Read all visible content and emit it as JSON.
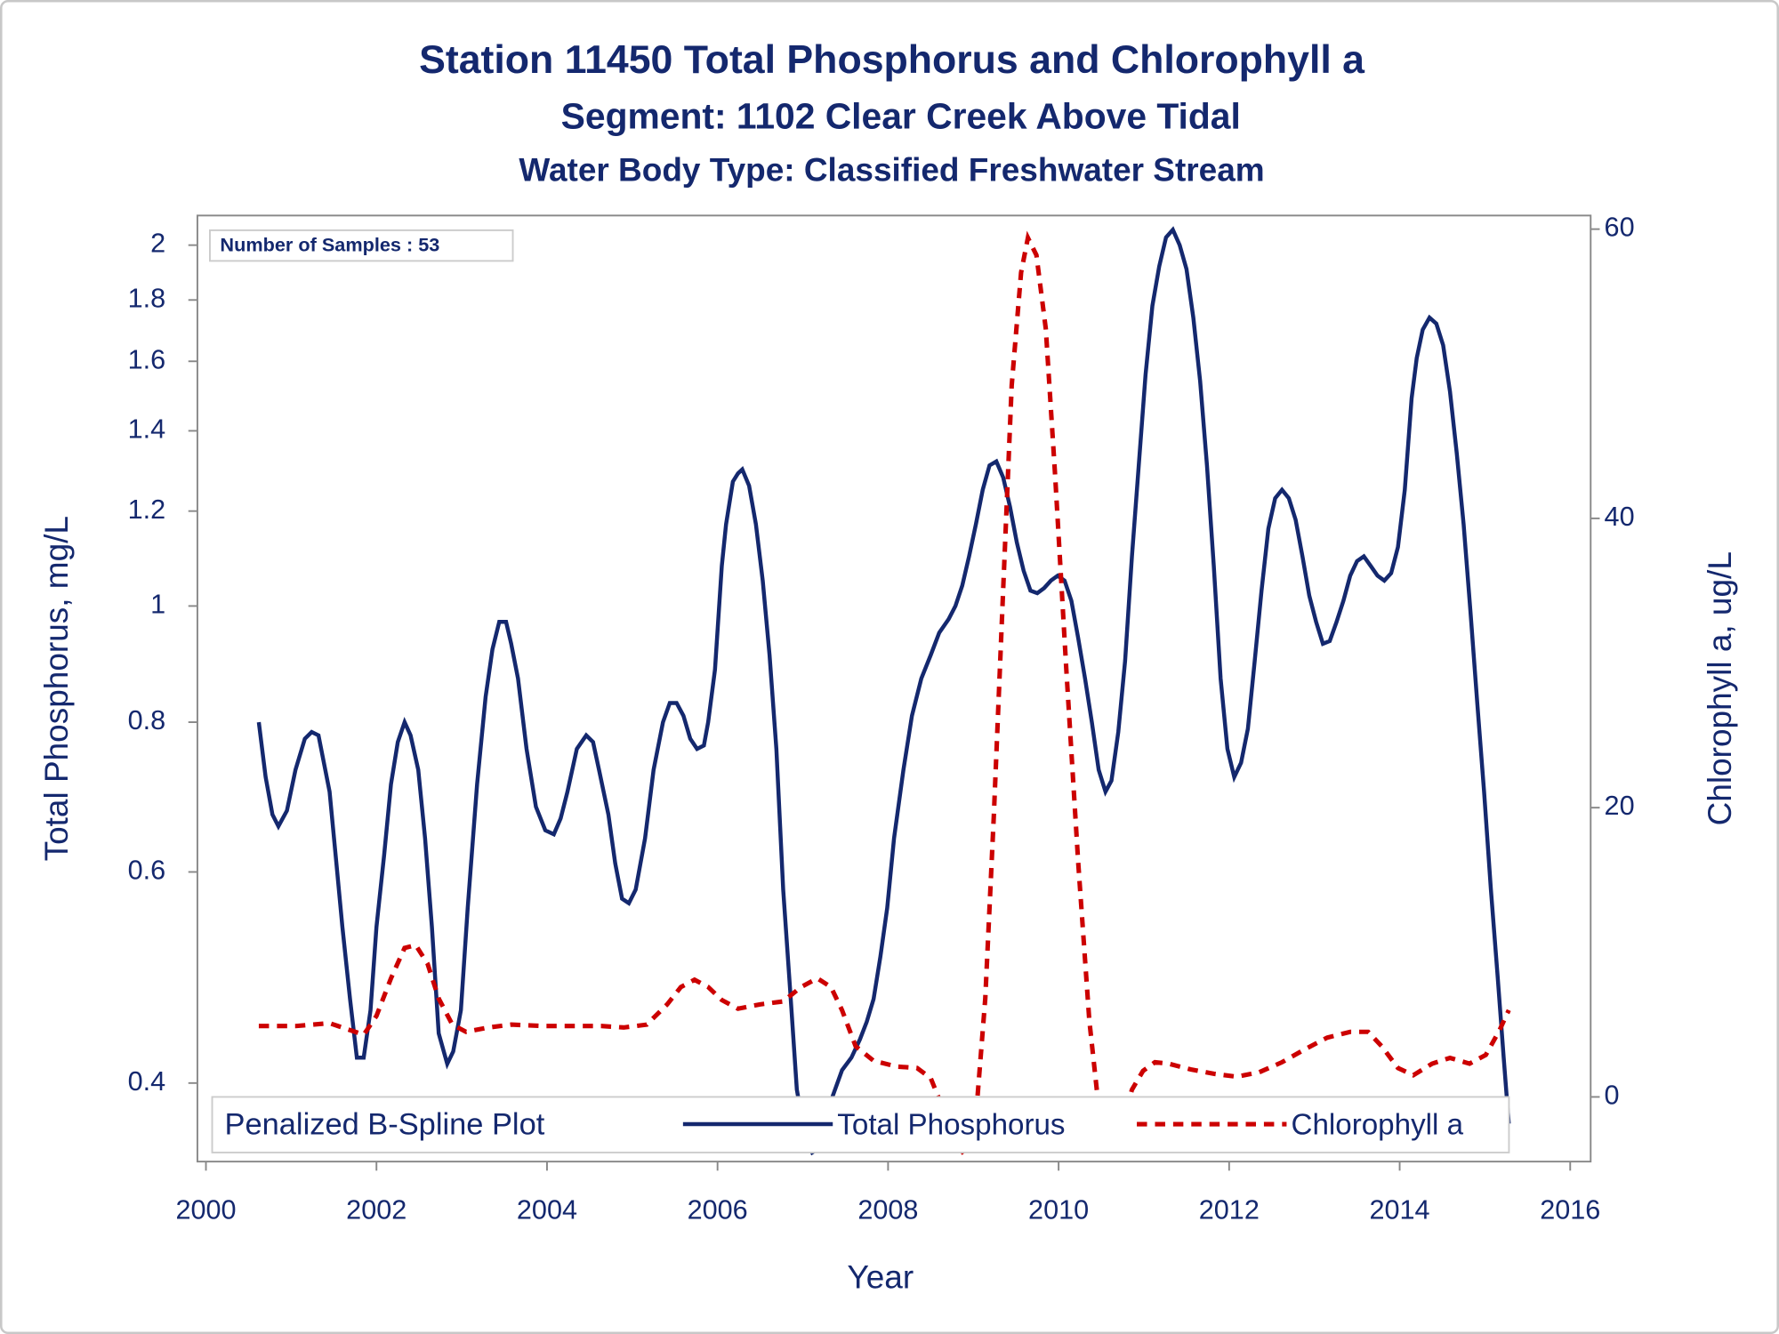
{
  "chart_data": {
    "type": "line",
    "title": "Station 11450  Total Phosphorus and Chlorophyll a",
    "subtitle": "Segment: 1102  Clear Creek Above Tidal",
    "subtitle2": "Water Body Type: Classified Freshwater Stream",
    "annotation": "Number of Samples : 53",
    "legend_title": "Penalized B-Spline Plot",
    "legend": "bottom",
    "x_label": "Year",
    "y_label": "Total Phosphorus, mg/L",
    "y2_label": "Chlorophyll a, ug/L",
    "xlim": [
      1999.9,
      2016.24
    ],
    "xticks": [
      2000,
      2002,
      2004,
      2006,
      2008,
      2010,
      2012,
      2014,
      2016
    ],
    "ylim": [
      0.344,
      2.117
    ],
    "yscale": "log",
    "yticks": [
      0.4,
      0.6,
      0.8,
      1,
      1.2,
      1.4,
      1.6,
      1.8,
      2
    ],
    "y2lim": [
      -4.47,
      60.94
    ],
    "y2ticks": [
      0,
      20,
      40,
      60
    ],
    "series": [
      {
        "name": "Total Phosphorus",
        "color": "#14286e",
        "dash": "solid",
        "axis": "y",
        "x": [
          2000.62,
          2000.7,
          2000.78,
          2000.85,
          2000.95,
          2001.05,
          2001.16,
          2001.24,
          2001.32,
          2001.45,
          2001.53,
          2001.6,
          2001.69,
          2001.77,
          2001.85,
          2001.93,
          2002.0,
          2002.09,
          2002.17,
          2002.25,
          2002.33,
          2002.4,
          2002.49,
          2002.57,
          2002.65,
          2002.73,
          2002.83,
          2002.9,
          2002.99,
          2003.07,
          2003.18,
          2003.28,
          2003.36,
          2003.44,
          2003.52,
          2003.58,
          2003.66,
          2003.76,
          2003.87,
          2003.98,
          2004.08,
          2004.16,
          2004.24,
          2004.35,
          2004.46,
          2004.54,
          2004.61,
          2004.72,
          2004.8,
          2004.88,
          2004.96,
          2005.04,
          2005.15,
          2005.25,
          2005.36,
          2005.44,
          2005.52,
          2005.6,
          2005.68,
          2005.76,
          2005.84,
          2005.89,
          2005.97,
          2006.05,
          2006.1,
          2006.18,
          2006.24,
          2006.29,
          2006.37,
          2006.45,
          2006.53,
          2006.61,
          2006.69,
          2006.77,
          2006.85,
          2006.93,
          2007.03,
          2007.11,
          2007.19,
          2007.27,
          2007.35,
          2007.46,
          2007.57,
          2007.67,
          2007.75,
          2007.83,
          2007.91,
          2007.99,
          2008.07,
          2008.18,
          2008.28,
          2008.39,
          2008.5,
          2008.6,
          2008.71,
          2008.79,
          2008.87,
          2008.95,
          2009.03,
          2009.11,
          2009.19,
          2009.27,
          2009.35,
          2009.43,
          2009.51,
          2009.59,
          2009.67,
          2009.75,
          2009.83,
          2009.91,
          2009.99,
          2010.07,
          2010.15,
          2010.23,
          2010.31,
          2010.39,
          2010.47,
          2010.55,
          2010.62,
          2010.7,
          2010.78,
          2010.86,
          2010.94,
          2011.02,
          2011.1,
          2011.18,
          2011.26,
          2011.34,
          2011.42,
          2011.5,
          2011.58,
          2011.66,
          2011.74,
          2011.82,
          2011.9,
          2011.98,
          2012.06,
          2012.14,
          2012.22,
          2012.3,
          2012.38,
          2012.46,
          2012.54,
          2012.62,
          2012.7,
          2012.78,
          2012.86,
          2012.94,
          2013.02,
          2013.1,
          2013.18,
          2013.26,
          2013.34,
          2013.42,
          2013.5,
          2013.58,
          2013.66,
          2013.74,
          2013.82,
          2013.9,
          2013.98,
          2014.06,
          2014.14,
          2014.2,
          2014.27,
          2014.35,
          2014.43,
          2014.51,
          2014.59,
          2014.67,
          2014.75,
          2014.83,
          2014.91,
          2014.99,
          2015.07,
          2015.15,
          2015.22,
          2015.28
        ],
        "values": [
          0.8,
          0.72,
          0.67,
          0.655,
          0.675,
          0.73,
          0.775,
          0.785,
          0.78,
          0.7,
          0.61,
          0.54,
          0.47,
          0.42,
          0.42,
          0.46,
          0.54,
          0.62,
          0.71,
          0.77,
          0.8,
          0.78,
          0.73,
          0.64,
          0.54,
          0.44,
          0.415,
          0.425,
          0.46,
          0.56,
          0.71,
          0.84,
          0.92,
          0.97,
          0.97,
          0.93,
          0.87,
          0.76,
          0.68,
          0.65,
          0.645,
          0.665,
          0.7,
          0.76,
          0.78,
          0.77,
          0.73,
          0.67,
          0.61,
          0.57,
          0.565,
          0.58,
          0.64,
          0.73,
          0.8,
          0.83,
          0.83,
          0.81,
          0.775,
          0.76,
          0.765,
          0.8,
          0.885,
          1.08,
          1.17,
          1.27,
          1.29,
          1.3,
          1.26,
          1.17,
          1.05,
          0.91,
          0.76,
          0.58,
          0.48,
          0.395,
          0.36,
          0.35,
          0.353,
          0.37,
          0.39,
          0.41,
          0.42,
          0.435,
          0.45,
          0.47,
          0.51,
          0.56,
          0.64,
          0.73,
          0.81,
          0.87,
          0.91,
          0.95,
          0.975,
          1.0,
          1.04,
          1.1,
          1.17,
          1.25,
          1.31,
          1.32,
          1.28,
          1.21,
          1.13,
          1.07,
          1.03,
          1.025,
          1.035,
          1.05,
          1.06,
          1.05,
          1.01,
          0.94,
          0.87,
          0.8,
          0.73,
          0.7,
          0.715,
          0.785,
          0.9,
          1.1,
          1.31,
          1.56,
          1.78,
          1.92,
          2.03,
          2.06,
          2.0,
          1.91,
          1.74,
          1.54,
          1.31,
          1.08,
          0.87,
          0.76,
          0.72,
          0.74,
          0.79,
          0.9,
          1.03,
          1.16,
          1.23,
          1.25,
          1.23,
          1.18,
          1.1,
          1.02,
          0.97,
          0.93,
          0.935,
          0.97,
          1.01,
          1.06,
          1.09,
          1.1,
          1.08,
          1.06,
          1.05,
          1.065,
          1.12,
          1.25,
          1.49,
          1.61,
          1.7,
          1.74,
          1.72,
          1.65,
          1.51,
          1.34,
          1.17,
          0.99,
          0.83,
          0.7,
          0.58,
          0.49,
          0.42,
          0.37
        ]
      },
      {
        "name": "Chlorophyll a",
        "color": "#cc0000",
        "dash": "dashed",
        "axis": "y2",
        "x": [
          2000.62,
          2001.05,
          2001.45,
          2001.65,
          2001.85,
          2002.0,
          2002.17,
          2002.33,
          2002.46,
          2002.6,
          2002.73,
          2002.89,
          2003.05,
          2003.31,
          2003.58,
          2003.98,
          2004.64,
          2004.9,
          2005.17,
          2005.41,
          2005.57,
          2005.73,
          2005.89,
          2006.05,
          2006.24,
          2006.5,
          2006.77,
          2006.98,
          2007.17,
          2007.33,
          2007.46,
          2007.62,
          2007.83,
          2008.1,
          2008.34,
          2008.5,
          2008.63,
          2008.76,
          2008.9,
          2009.03,
          2009.14,
          2009.24,
          2009.35,
          2009.45,
          2009.56,
          2009.64,
          2009.74,
          2009.85,
          2009.96,
          2010.09,
          2010.23,
          2010.36,
          2010.49,
          2010.6,
          2010.73,
          2010.86,
          2010.99,
          2011.13,
          2011.29,
          2011.55,
          2011.82,
          2012.09,
          2012.35,
          2012.62,
          2012.89,
          2013.15,
          2013.42,
          2013.63,
          2013.79,
          2013.98,
          2014.16,
          2014.38,
          2014.59,
          2014.82,
          2015.01,
          2015.17,
          2015.28
        ],
        "values": [
          4.9,
          4.9,
          5.1,
          4.7,
          4.3,
          5.6,
          8.2,
          10.3,
          10.5,
          9.2,
          6.8,
          5.0,
          4.5,
          4.8,
          5.0,
          4.9,
          4.9,
          4.8,
          5.0,
          6.4,
          7.6,
          8.1,
          7.6,
          6.7,
          6.1,
          6.4,
          6.6,
          7.6,
          8.2,
          7.6,
          6.0,
          3.5,
          2.5,
          2.1,
          2.0,
          1.3,
          -0.6,
          -3.0,
          -4.0,
          -1.4,
          6.8,
          19.4,
          35.1,
          49.2,
          57.0,
          59.4,
          58.2,
          53.1,
          42.9,
          29.6,
          16.2,
          5.3,
          -1.8,
          -3.4,
          -2.2,
          0.5,
          1.8,
          2.4,
          2.3,
          1.9,
          1.6,
          1.4,
          1.7,
          2.4,
          3.3,
          4.1,
          4.5,
          4.5,
          3.5,
          2.0,
          1.5,
          2.3,
          2.7,
          2.3,
          2.9,
          4.6,
          6.0
        ]
      }
    ]
  }
}
